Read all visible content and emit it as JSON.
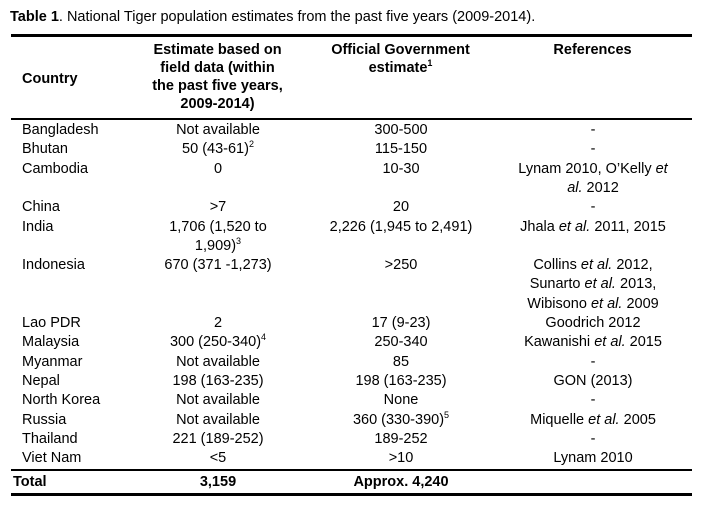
{
  "caption": {
    "label": "Table 1",
    "text": ". National Tiger population estimates from the past five years (2009-2014)."
  },
  "headers": {
    "country": "Country",
    "estimate_lines": [
      "Estimate based on",
      "field data (within",
      "the past five years,",
      "2009-2014)"
    ],
    "official_lines": [
      "Official Government",
      "estimate"
    ],
    "official_sup": "1",
    "references": "References"
  },
  "rows": [
    {
      "country": "Bangladesh",
      "est": [
        "Not available"
      ],
      "gov": "300-500",
      "ref": [
        "-"
      ]
    },
    {
      "country": "Bhutan",
      "est": [
        "50 (43-61)"
      ],
      "est_sup": "2",
      "gov": "115-150",
      "ref": [
        "-"
      ]
    },
    {
      "country": "Cambodia",
      "est": [
        "0"
      ],
      "gov": "10-30",
      "ref": [
        "Lynam 2010, O’Kelly et",
        "al. 2012"
      ]
    },
    {
      "country": "China",
      "est": [
        ">7"
      ],
      "gov": "20",
      "ref": [
        "-"
      ]
    },
    {
      "country": "India",
      "est": [
        "1,706 (1,520 to",
        "1,909)"
      ],
      "est_sup": "3",
      "gov": "2,226 (1,945 to 2,491)",
      "ref": [
        "Jhala et al. 2011, 2015"
      ]
    },
    {
      "country": "Indonesia",
      "est": [
        "670 (371 -1,273)"
      ],
      "gov": ">250",
      "ref": [
        "Collins et al. 2012,",
        "Sunarto et al. 2013,",
        "Wibisono et al. 2009"
      ]
    },
    {
      "country": "Lao PDR",
      "est": [
        "2"
      ],
      "gov": "17 (9-23)",
      "ref": [
        "Goodrich 2012"
      ]
    },
    {
      "country": "Malaysia",
      "est": [
        "300 (250-340)"
      ],
      "est_sup": "4",
      "gov": "250-340",
      "ref": [
        "Kawanishi et al. 2015"
      ]
    },
    {
      "country": "Myanmar",
      "est": [
        "Not available"
      ],
      "gov": "85",
      "ref": [
        "-"
      ]
    },
    {
      "country": "Nepal",
      "est": [
        "198 (163-235)"
      ],
      "gov": "198 (163-235)",
      "ref": [
        "GON (2013)"
      ]
    },
    {
      "country": "North Korea",
      "est": [
        "Not available"
      ],
      "gov": "None",
      "ref": [
        "-"
      ]
    },
    {
      "country": "Russia",
      "est": [
        "Not available"
      ],
      "gov": "360 (330-390)",
      "gov_sup": "5",
      "ref": [
        "Miquelle et al. 2005"
      ]
    },
    {
      "country": "Thailand",
      "est": [
        "221 (189-252)"
      ],
      "gov": "189-252",
      "ref": [
        "-"
      ]
    },
    {
      "country": "Viet Nam",
      "est": [
        "<5"
      ],
      "gov": ">10",
      "ref": [
        "Lynam 2010"
      ]
    }
  ],
  "total": {
    "label": "Total",
    "est": "3,159",
    "gov": "Approx. 4,240"
  }
}
